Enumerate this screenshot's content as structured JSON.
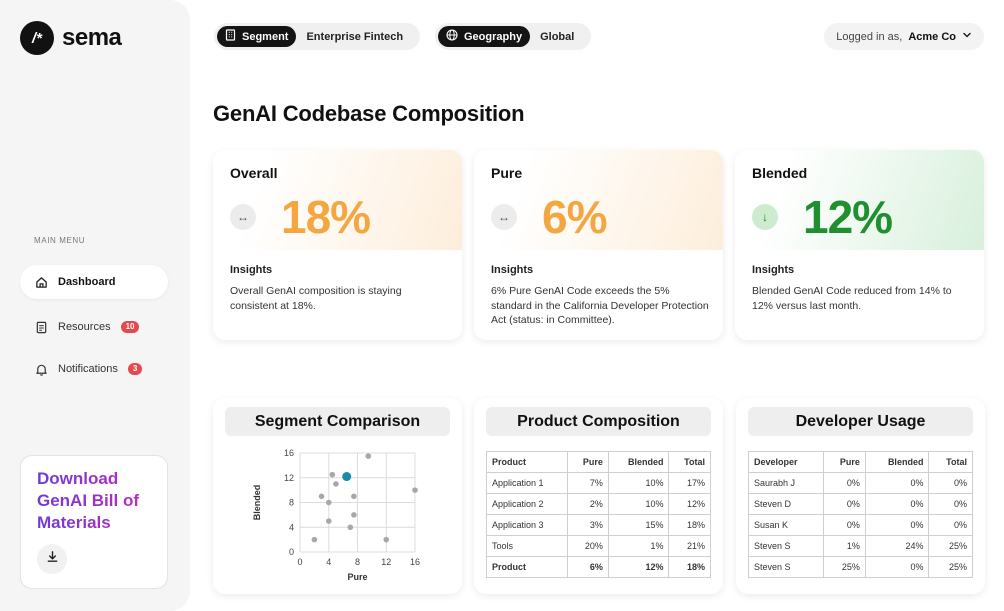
{
  "brand": {
    "logo_mark": "/*",
    "name": "sema"
  },
  "sidebar": {
    "menu_label": "MAIN MENU",
    "items": [
      {
        "label": "Dashboard",
        "icon": "home-icon",
        "active": true
      },
      {
        "label": "Resources",
        "icon": "document-icon",
        "badge": "10"
      },
      {
        "label": "Notifications",
        "icon": "bell-icon",
        "badge": "3"
      }
    ],
    "download": {
      "title": "Download GenAI Bill of Materials",
      "icon": "download-icon"
    }
  },
  "filters": {
    "segment": {
      "tag": "Segment",
      "value": "Enterprise Fintech",
      "icon": "building-icon"
    },
    "geography": {
      "tag": "Geography",
      "value": "Global",
      "icon": "globe-icon"
    }
  },
  "user": {
    "prefix": "Logged in as,",
    "name": "Acme Co",
    "icon": "chevron-down-icon"
  },
  "page_title": "GenAI Codebase Composition",
  "metrics": [
    {
      "label": "Overall",
      "value": "18%",
      "icon": "horizontal-arrows-icon",
      "tone": "orange",
      "insights_label": "Insights",
      "insight": "Overall GenAI composition is staying consistent at 18%."
    },
    {
      "label": "Pure",
      "value": "6%",
      "icon": "horizontal-arrows-icon",
      "tone": "orange",
      "insights_label": "Insights",
      "insight": "6% Pure GenAI Code exceeds the 5% standard in the California Developer Protection Act (status: in Committee)."
    },
    {
      "label": "Blended",
      "value": "12%",
      "icon": "arrow-down-icon",
      "tone": "green",
      "insights_label": "Insights",
      "insight": "Blended GenAI Code reduced from 14% to 12% versus last month."
    }
  ],
  "segment_comparison": {
    "title": "Segment Comparison",
    "chart_data": {
      "type": "scatter",
      "xlabel": "Pure",
      "ylabel": "Blended",
      "xlim": [
        0,
        16
      ],
      "ylim": [
        0,
        16
      ],
      "xticks": [
        "0",
        "4",
        "8",
        "12",
        "16"
      ],
      "yticks": [
        "0",
        "4",
        "8",
        "12",
        "16"
      ],
      "grid": true,
      "points": [
        {
          "x": 2,
          "y": 2
        },
        {
          "x": 3,
          "y": 9
        },
        {
          "x": 4,
          "y": 5
        },
        {
          "x": 4,
          "y": 8
        },
        {
          "x": 4.5,
          "y": 12.5
        },
        {
          "x": 5,
          "y": 11
        },
        {
          "x": 6.5,
          "y": 12.2,
          "highlight": true
        },
        {
          "x": 7,
          "y": 4
        },
        {
          "x": 7.5,
          "y": 9
        },
        {
          "x": 7.5,
          "y": 6
        },
        {
          "x": 9.5,
          "y": 15.5
        },
        {
          "x": 12,
          "y": 2
        },
        {
          "x": 16,
          "y": 10
        }
      ],
      "colors": {
        "point": "#a8a8a8",
        "highlight": "#1a8aa6"
      }
    }
  },
  "product_composition": {
    "title": "Product Composition",
    "headers": [
      "Product",
      "Pure",
      "Blended",
      "Total"
    ],
    "rows": [
      [
        "Application 1",
        "7%",
        "10%",
        "17%"
      ],
      [
        "Application 2",
        "2%",
        "10%",
        "12%"
      ],
      [
        "Application 3",
        "3%",
        "15%",
        "18%"
      ],
      [
        "Tools",
        "20%",
        "1%",
        "21%"
      ]
    ],
    "total": [
      "Product",
      "6%",
      "12%",
      "18%"
    ]
  },
  "developer_usage": {
    "title": "Developer Usage",
    "headers": [
      "Developer",
      "Pure",
      "Blended",
      "Total"
    ],
    "rows": [
      [
        "Saurabh J",
        "0%",
        "0%",
        "0%"
      ],
      [
        "Steven D",
        "0%",
        "0%",
        "0%"
      ],
      [
        "Susan K",
        "0%",
        "0%",
        "0%"
      ],
      [
        "Steven S",
        "1%",
        "24%",
        "25%"
      ],
      [
        "Steven S",
        "25%",
        "0%",
        "25%"
      ]
    ]
  }
}
